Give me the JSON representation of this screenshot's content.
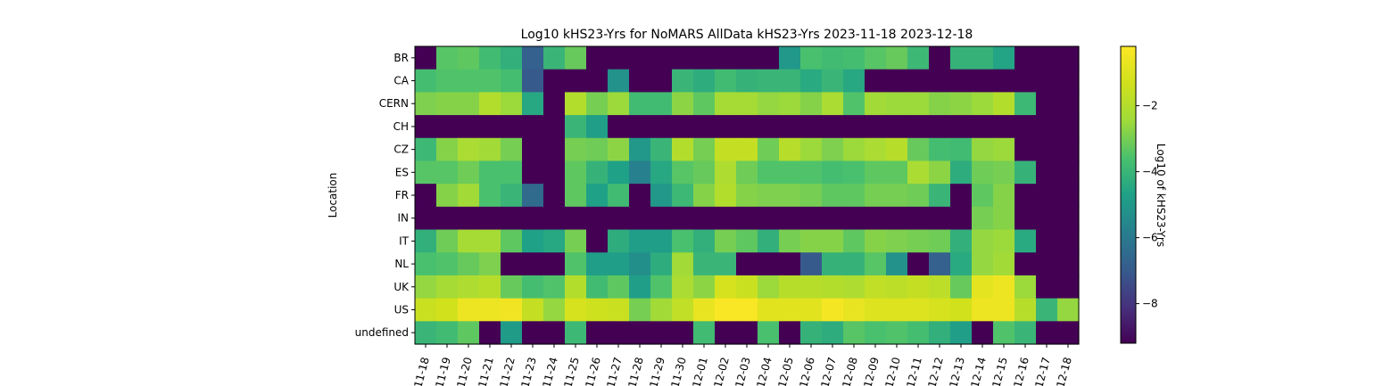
{
  "chart_data": {
    "type": "heatmap",
    "title": "Log10 kHS23-Yrs for NoMARS AllData kHS23-Yrs 2023-11-18 2023-12-18",
    "xlabel": "",
    "ylabel": "Location",
    "colorbar_label": "Log10 of kHS23-Yrs",
    "colormap": "viridis",
    "vmin": -9.2,
    "vmax": -0.2,
    "colorbar_ticks": [
      -2,
      -4,
      -6,
      -8
    ],
    "x_tick_labels": [
      "11-18",
      "11-19",
      "11-20",
      "11-21",
      "11-22",
      "11-23",
      "11-24",
      "11-25",
      "11-26",
      "11-27",
      "11-28",
      "11-29",
      "11-30",
      "12-01",
      "12-02",
      "12-03",
      "12-04",
      "12-05",
      "12-06",
      "12-07",
      "12-08",
      "12-09",
      "12-10",
      "12-11",
      "12-12",
      "12-13",
      "12-14",
      "12-15",
      "12-16",
      "12-17",
      "12-18"
    ],
    "x": [
      "2023-11-18",
      "2023-11-19",
      "2023-11-20",
      "2023-11-21",
      "2023-11-22",
      "2023-11-23",
      "2023-11-24",
      "2023-11-25",
      "2023-11-26",
      "2023-11-27",
      "2023-11-28",
      "2023-11-29",
      "2023-11-30",
      "2023-12-01",
      "2023-12-02",
      "2023-12-03",
      "2023-12-04",
      "2023-12-05",
      "2023-12-06",
      "2023-12-07",
      "2023-12-08",
      "2023-12-09",
      "2023-12-10",
      "2023-12-11",
      "2023-12-12",
      "2023-12-13",
      "2023-12-14",
      "2023-12-15",
      "2023-12-16",
      "2023-12-17",
      "2023-12-18"
    ],
    "y": [
      "BR",
      "CA",
      "CERN",
      "CH",
      "CZ",
      "ES",
      "FR",
      "IN",
      "IT",
      "NL",
      "UK",
      "US",
      "undefined"
    ],
    "values": [
      [
        -9.2,
        -3.4,
        -3.3,
        -3.8,
        -4.2,
        -6.8,
        -4.0,
        -3.2,
        -9.2,
        -9.2,
        -9.2,
        -9.2,
        -9.2,
        -9.2,
        -9.2,
        -9.2,
        -9.2,
        -5.0,
        -3.6,
        -3.8,
        -3.7,
        -3.4,
        -3.2,
        -3.9,
        -9.2,
        -4.1,
        -4.1,
        -4.6,
        -9.2,
        -9.2,
        -9.2
      ],
      [
        -3.7,
        -3.5,
        -3.5,
        -3.5,
        -3.7,
        -7.0,
        -9.2,
        -9.2,
        -9.2,
        -5.2,
        -9.2,
        -9.2,
        -4.0,
        -4.3,
        -3.8,
        -4.1,
        -4.0,
        -4.0,
        -4.4,
        -4.0,
        -4.5,
        -9.2,
        -9.2,
        -9.2,
        -9.2,
        -9.2,
        -9.2,
        -9.2,
        -9.2,
        -9.2,
        -9.2
      ],
      [
        -2.9,
        -2.8,
        -2.8,
        -2.0,
        -2.5,
        -4.5,
        -9.2,
        -2.0,
        -3.0,
        -2.5,
        -3.8,
        -3.8,
        -2.7,
        -3.3,
        -2.3,
        -2.3,
        -2.6,
        -2.5,
        -2.8,
        -2.2,
        -3.5,
        -2.4,
        -2.5,
        -2.5,
        -2.8,
        -2.7,
        -2.5,
        -2.0,
        -3.9,
        -9.2,
        -9.2
      ],
      [
        -9.2,
        -9.2,
        -9.2,
        -9.2,
        -9.2,
        -9.2,
        -9.2,
        -4.0,
        -4.8,
        -9.2,
        -9.2,
        -9.2,
        -9.2,
        -9.2,
        -9.2,
        -9.2,
        -9.2,
        -9.2,
        -9.2,
        -9.2,
        -9.2,
        -9.2,
        -9.2,
        -9.2,
        -9.2,
        -9.2,
        -9.2,
        -9.2,
        -9.2,
        -9.2,
        -9.2
      ],
      [
        -3.9,
        -2.8,
        -2.2,
        -2.4,
        -3.0,
        -9.2,
        -9.2,
        -3.0,
        -3.1,
        -2.7,
        -5.0,
        -4.0,
        -2.0,
        -3.0,
        -1.6,
        -1.6,
        -3.1,
        -1.9,
        -2.5,
        -2.9,
        -2.5,
        -2.2,
        -1.9,
        -3.2,
        -3.7,
        -3.8,
        -2.6,
        -2.5,
        -9.2,
        -9.2,
        -9.2
      ],
      [
        -3.4,
        -3.4,
        -3.1,
        -3.6,
        -3.6,
        -9.2,
        -9.2,
        -3.3,
        -4.1,
        -4.7,
        -5.8,
        -4.5,
        -3.4,
        -3.2,
        -2.1,
        -3.1,
        -3.5,
        -3.5,
        -3.5,
        -3.7,
        -3.6,
        -3.3,
        -3.3,
        -2.2,
        -2.7,
        -4.3,
        -3.1,
        -3.0,
        -4.1,
        -9.2,
        -9.2
      ],
      [
        -9.2,
        -2.8,
        -2.4,
        -3.6,
        -4.0,
        -6.5,
        -9.2,
        -3.3,
        -4.7,
        -3.8,
        -9.2,
        -5.0,
        -3.9,
        -2.8,
        -2.0,
        -2.8,
        -2.9,
        -2.9,
        -3.0,
        -3.3,
        -3.3,
        -3.0,
        -3.0,
        -3.1,
        -4.0,
        -9.2,
        -3.3,
        -2.8,
        -9.2,
        -9.2,
        -9.2
      ],
      [
        -9.2,
        -9.2,
        -9.2,
        -9.2,
        -9.2,
        -9.2,
        -9.2,
        -9.2,
        -9.2,
        -9.2,
        -9.2,
        -9.2,
        -9.2,
        -9.2,
        -9.2,
        -9.2,
        -9.2,
        -9.2,
        -9.2,
        -9.2,
        -9.2,
        -9.2,
        -9.2,
        -9.2,
        -9.2,
        -9.2,
        -3.0,
        -2.8,
        -9.2,
        -9.2,
        -9.2
      ],
      [
        -4.2,
        -3.1,
        -2.3,
        -2.3,
        -3.3,
        -4.7,
        -4.5,
        -3.0,
        -9.2,
        -4.3,
        -4.8,
        -4.8,
        -3.6,
        -4.2,
        -3.0,
        -3.3,
        -4.2,
        -3.0,
        -2.8,
        -2.8,
        -3.3,
        -2.8,
        -2.9,
        -3.0,
        -3.1,
        -4.2,
        -2.6,
        -2.5,
        -4.4,
        -9.2,
        -9.2
      ],
      [
        -3.6,
        -3.5,
        -3.2,
        -2.9,
        -9.2,
        -9.2,
        -9.2,
        -3.5,
        -4.8,
        -4.8,
        -5.3,
        -4.3,
        -2.4,
        -4.0,
        -4.0,
        -9.2,
        -9.2,
        -9.2,
        -7.0,
        -4.1,
        -4.1,
        -3.4,
        -5.2,
        -9.2,
        -6.8,
        -4.4,
        -2.6,
        -2.4,
        -9.2,
        -9.2,
        -9.2
      ],
      [
        -2.6,
        -2.3,
        -2.1,
        -1.9,
        -3.2,
        -3.7,
        -3.5,
        -2.0,
        -3.8,
        -3.3,
        -4.8,
        -3.5,
        -2.2,
        -2.7,
        -1.2,
        -1.5,
        -2.5,
        -1.9,
        -1.9,
        -2.0,
        -2.1,
        -1.7,
        -1.8,
        -1.6,
        -1.8,
        -3.2,
        -0.8,
        -0.6,
        -2.5,
        -9.2,
        -9.2
      ],
      [
        -1.5,
        -1.3,
        -0.6,
        -0.6,
        -0.5,
        -1.6,
        -2.6,
        -1.2,
        -1.4,
        -1.5,
        -3.0,
        -2.4,
        -1.7,
        -0.7,
        -0.3,
        -0.3,
        -0.9,
        -0.9,
        -0.9,
        -0.4,
        -0.7,
        -1.0,
        -1.0,
        -1.0,
        -1.2,
        -1.3,
        -0.6,
        -0.6,
        -1.9,
        -4.0,
        -2.6
      ],
      [
        -4.0,
        -3.8,
        -3.3,
        -9.2,
        -4.9,
        -9.2,
        -9.2,
        -3.9,
        -9.2,
        -9.2,
        -9.2,
        -9.2,
        -9.2,
        -3.8,
        -9.2,
        -9.2,
        -3.6,
        -9.2,
        -4.1,
        -4.3,
        -3.4,
        -3.6,
        -3.5,
        -3.7,
        -4.2,
        -4.8,
        -9.2,
        -3.5,
        -4.0,
        -9.2,
        -9.2
      ]
    ]
  }
}
